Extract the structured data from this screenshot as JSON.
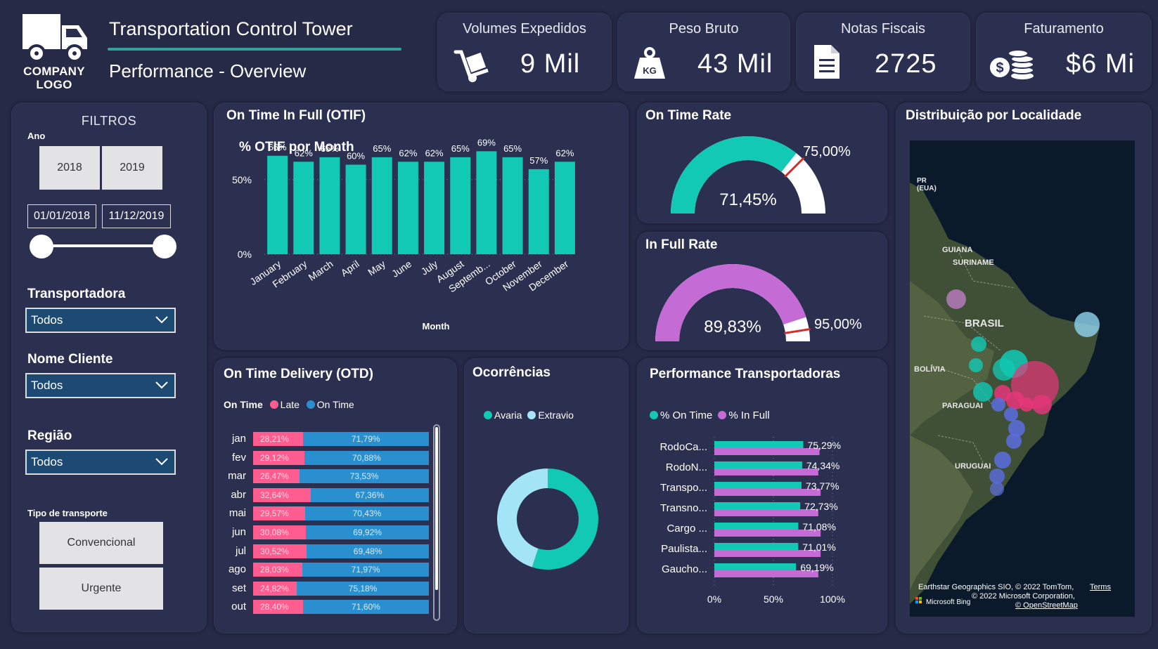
{
  "header": {
    "logo_text": "COMPANY LOGO",
    "title": "Transportation Control Tower",
    "subtitle": "Performance - Overview"
  },
  "kpis": [
    {
      "label": "Volumes Expedidos",
      "value": "9 Mil",
      "icon": "hand-truck-icon"
    },
    {
      "label": "Peso Bruto",
      "value": "43 Mil",
      "icon": "kg-weight-icon"
    },
    {
      "label": "Notas Fiscais",
      "value": "2725",
      "icon": "document-icon"
    },
    {
      "label": "Faturamento",
      "value": "$6 Mi",
      "icon": "coins-icon"
    }
  ],
  "filters": {
    "title": "FILTROS",
    "ano_label": "Ano",
    "years": [
      "2018",
      "2019"
    ],
    "date_start": "01/01/2018",
    "date_end": "11/12/2019",
    "transportadora_label": "Transportadora",
    "transportadora_value": "Todos",
    "cliente_label": "Nome Cliente",
    "cliente_value": "Todos",
    "regiao_label": "Região",
    "regiao_value": "Todos",
    "tipo_label": "Tipo de transporte",
    "tipo_options": [
      "Convencional",
      "Urgente"
    ]
  },
  "otif": {
    "card_title": "On Time In Full (OTIF)",
    "chart_data": {
      "type": "bar",
      "title": "% OTIF por Month",
      "xlabel": "Month",
      "ylabel": "",
      "categories": [
        "January",
        "February",
        "March",
        "April",
        "May",
        "June",
        "July",
        "August",
        "Septemb...",
        "October",
        "November",
        "December"
      ],
      "values": [
        66,
        62,
        65,
        60,
        65,
        62,
        62,
        65,
        69,
        65,
        57,
        62
      ],
      "value_labels": [
        "66%",
        "62%",
        "65%",
        "60%",
        "65%",
        "62%",
        "62%",
        "65%",
        "69%",
        "65%",
        "57%",
        "62%"
      ],
      "y_ticks": [
        "0%",
        "50%"
      ],
      "ylim": [
        0,
        80
      ]
    }
  },
  "on_time_rate": {
    "title": "On Time Rate",
    "value": "71,45%",
    "target": "75,00%",
    "fraction": 0.7145,
    "target_fraction": 0.75
  },
  "in_full_rate": {
    "title": "In Full Rate",
    "value": "89,83%",
    "target": "95,00%",
    "fraction": 0.8983,
    "target_fraction": 0.95
  },
  "otd": {
    "title": "On Time Delivery (OTD)",
    "legend_title": "On Time",
    "legend": [
      "Late",
      "On Time"
    ],
    "chart_data": {
      "type": "bar",
      "stacked": true,
      "orientation": "horizontal",
      "categories": [
        "jan",
        "fev",
        "mar",
        "abr",
        "mai",
        "jun",
        "jul",
        "ago",
        "set",
        "out"
      ],
      "series": [
        {
          "name": "Late",
          "values": [
            28.21,
            29.12,
            26.47,
            32.64,
            29.57,
            30.08,
            30.52,
            28.03,
            24.82,
            28.4
          ]
        },
        {
          "name": "On Time",
          "values": [
            71.79,
            70.88,
            73.53,
            67.36,
            70.43,
            69.92,
            69.48,
            71.97,
            75.18,
            71.6
          ]
        }
      ],
      "labels_late": [
        "28,21%",
        "29,12%",
        "26,47%",
        "32,64%",
        "29,57%",
        "30,08%",
        "30,52%",
        "28,03%",
        "24,82%",
        "28,40%"
      ],
      "labels_ontime": [
        "71,79%",
        "70,88%",
        "73,53%",
        "67,36%",
        "70,43%",
        "69,92%",
        "69,48%",
        "71,97%",
        "75,18%",
        "71,60%"
      ]
    }
  },
  "ocorrencias": {
    "title": "Ocorrências",
    "legend": [
      "Avaria",
      "Extravio"
    ],
    "chart_data": {
      "type": "pie",
      "donut": true,
      "categories": [
        "Avaria",
        "Extravio"
      ],
      "values": [
        55,
        45
      ]
    }
  },
  "performance": {
    "title": "Performance Transportadoras",
    "legend": [
      "% On Time",
      "% In Full"
    ],
    "chart_data": {
      "type": "bar",
      "orientation": "horizontal",
      "categories": [
        "RodoCa...",
        "RodoN...",
        "Transpo...",
        "Transno...",
        "Cargo ...",
        "Paulista...",
        "Gaucho..."
      ],
      "series": [
        {
          "name": "% On Time",
          "values": [
            75.29,
            74.34,
            73.77,
            72.73,
            71.08,
            71.01,
            69.19
          ]
        },
        {
          "name": "% In Full",
          "values": [
            89,
            88,
            90,
            88,
            90,
            90,
            88
          ]
        }
      ],
      "value_labels": [
        "75,29%",
        "74,34%",
        "73,77%",
        "72,73%",
        "71,08%",
        "71,01%",
        "69,19%"
      ],
      "x_ticks": [
        "0%",
        "50%",
        "100%"
      ],
      "xlim": [
        0,
        100
      ]
    }
  },
  "map": {
    "title": "Distribuição por Localidade",
    "labels": [
      "PR (EUA)",
      "GUIANA",
      "SURINAME",
      "BRASIL",
      "BOLÍVIA",
      "PARAGUAI",
      "URUGUAI"
    ],
    "credit_line1": "Earthstar Geographics SIO, © 2022 TomTom,",
    "credit_terms": "Terms",
    "credit_line2": "© 2022 Microsoft Corporation,",
    "credit_osm": "© OpenStreetMap",
    "bing": "Microsoft Bing",
    "colors": {
      "teal": "#11c9b5",
      "pink": "#e8367a",
      "blue": "#5a6de0",
      "purple": "#b57ab8",
      "lightblue": "#8ed4ef"
    }
  },
  "colors": {
    "teal": "#11c9b5",
    "violet": "#c46bd6",
    "pink": "#ff5d8f",
    "blue": "#2a8fcf",
    "lightblue": "#a3e4f7"
  }
}
